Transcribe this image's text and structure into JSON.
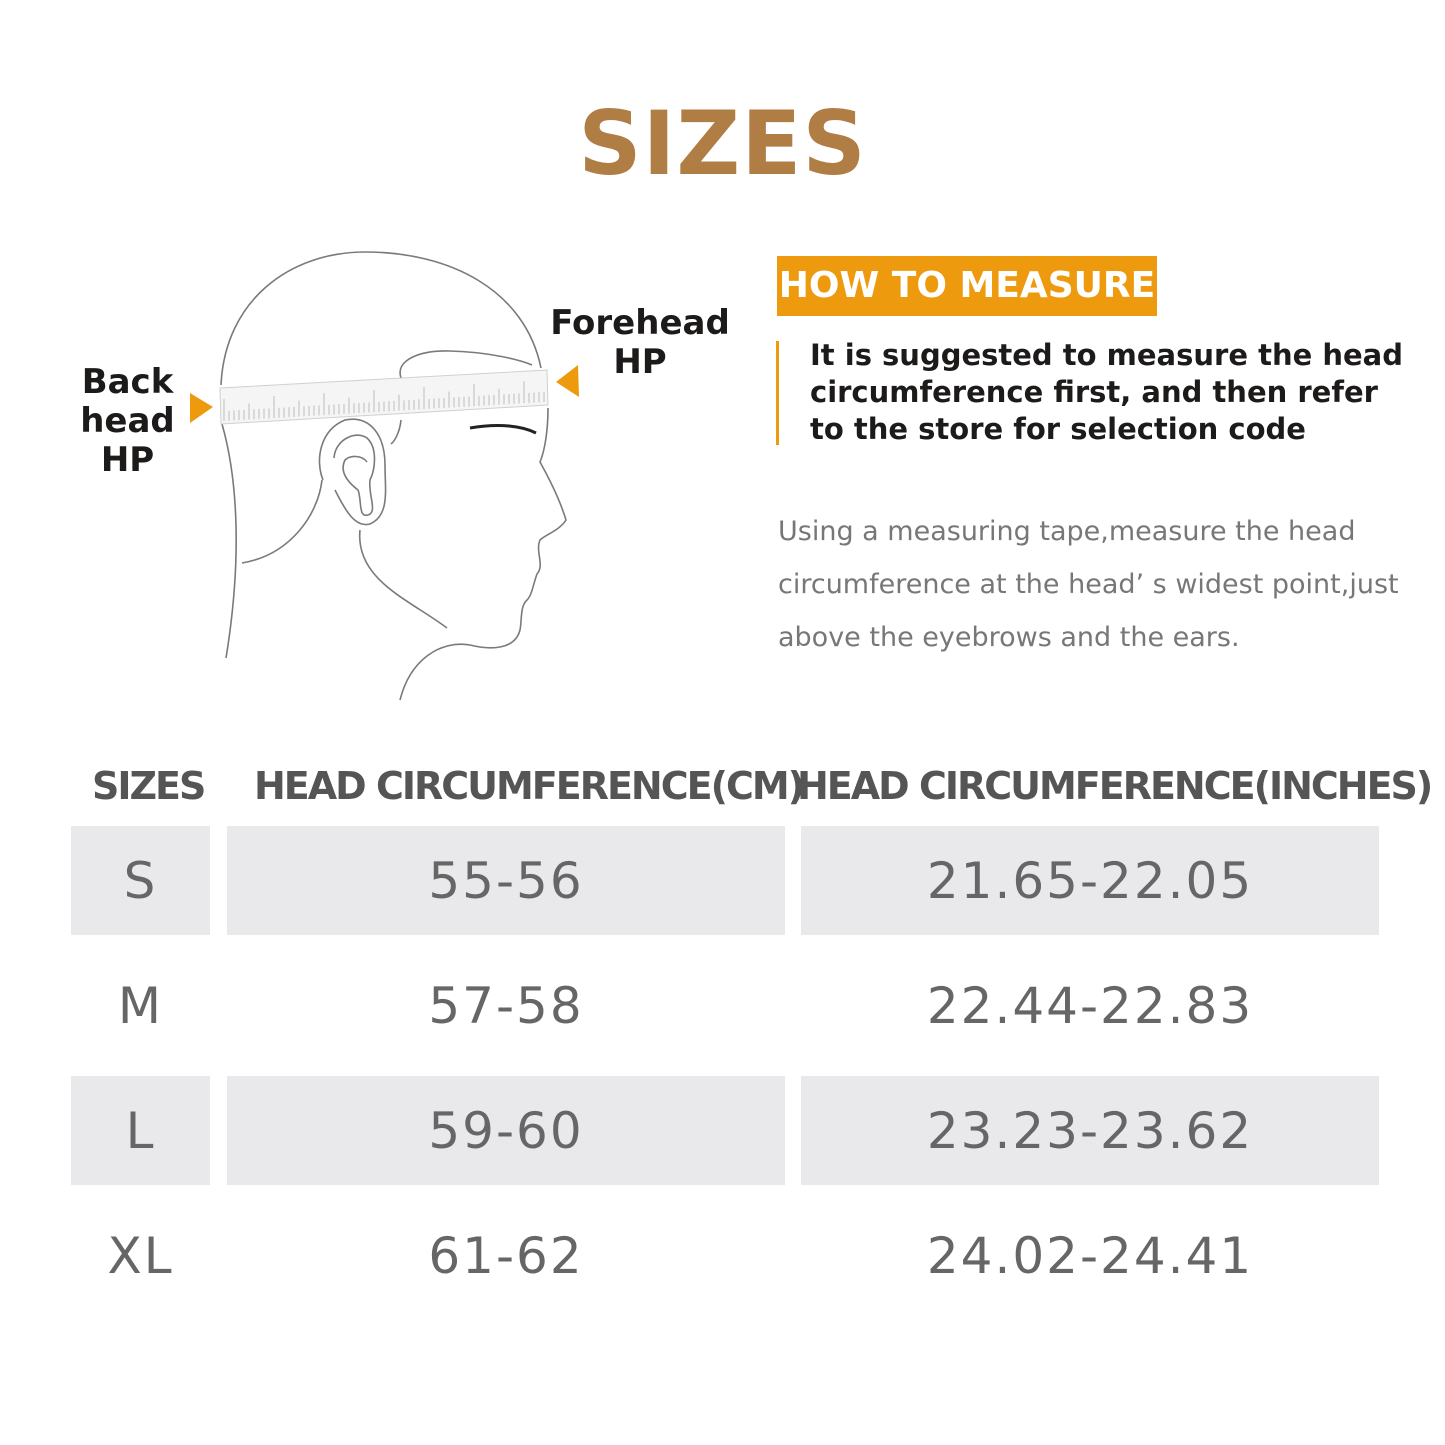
{
  "title": "SIZES",
  "diagram": {
    "back_label": "Back head HP",
    "forehead_label": "Forehead HP",
    "accent": "#ee9a0e"
  },
  "how_to": {
    "heading": "HOW TO MEASURE",
    "suggestion": "It is suggested to measure the head circumference first, and then refer to the store for selection code",
    "instructions": "Using a measuring tape,measure the head circumference at the head’ s widest point,just above the eyebrows and the ears."
  },
  "table": {
    "headers": [
      "SIZES",
      "HEAD CIRCUMFERENCE(CM)",
      "HEAD CIRCUMFERENCE(INCHES)"
    ],
    "rows": [
      [
        "S",
        "55-56",
        "21.65-22.05"
      ],
      [
        "M",
        "57-58",
        "22.44-22.83"
      ],
      [
        "L",
        "59-60",
        "23.23-23.62"
      ],
      [
        "XL",
        "61-62",
        "24.02-24.41"
      ]
    ]
  },
  "colors": {
    "title": "#b07e45",
    "accent": "#ee9a0e",
    "row_shade": "#e9e9eb"
  }
}
